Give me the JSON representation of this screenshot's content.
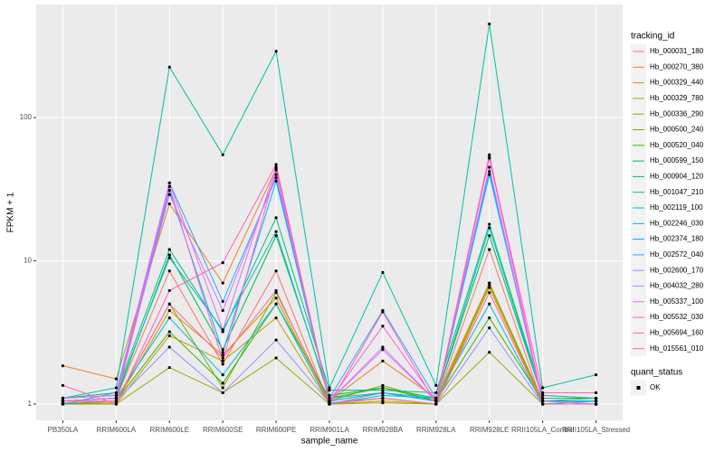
{
  "chart_data": {
    "type": "line",
    "x_label": "sample_name",
    "y_label": "FPKM + 1",
    "categories": [
      "PB350LA",
      "RRIM600LA",
      "RRIM600LE",
      "RRIM600SE",
      "RRIM600PE",
      "RRIM901LA",
      "RRIM928BA",
      "RRIM928LA",
      "RRIM928LE",
      "RRII105LA_Control",
      "RRII105LA_Stressed"
    ],
    "log_scale": true,
    "grid": true,
    "ylim": [
      0.77,
      615
    ],
    "yticks": [
      1,
      10,
      100
    ],
    "legend_title": "tracking_id",
    "legend_position": "right",
    "point_color": "#000000",
    "shape_legend": {
      "title": "quant_status",
      "labels": [
        "OK"
      ]
    },
    "series": [
      {
        "name": "Hb_000031_180",
        "color": "#F8766D",
        "values": [
          1.05,
          1.1,
          8.5,
          1.9,
          8.5,
          1.0,
          1.2,
          1.05,
          12,
          1.0,
          1.0
        ]
      },
      {
        "name": "Hb_000270_380",
        "color": "#EA8331",
        "values": [
          1.85,
          1.5,
          25,
          7,
          44,
          1.05,
          2.0,
          1.1,
          7,
          1.05,
          1.05
        ]
      },
      {
        "name": "Hb_000329_440",
        "color": "#D89000",
        "values": [
          1.0,
          1.02,
          4.5,
          2.2,
          5.5,
          1.02,
          1.1,
          1.0,
          6.5,
          1.0,
          1.0
        ]
      },
      {
        "name": "Hb_000329_780",
        "color": "#C09B00",
        "values": [
          1.0,
          1.0,
          3.0,
          2.0,
          4.0,
          1.0,
          1.05,
          1.0,
          7,
          1.0,
          1.0
        ]
      },
      {
        "name": "Hb_000336_290",
        "color": "#A3A500",
        "values": [
          1.0,
          1.0,
          1.8,
          1.2,
          2.1,
          1.0,
          1.02,
          1.0,
          2.3,
          1.0,
          1.0
        ]
      },
      {
        "name": "Hb_000500_240",
        "color": "#7CAE00",
        "values": [
          1.02,
          1.05,
          5.0,
          1.3,
          6.0,
          1.05,
          1.35,
          1.05,
          6.8,
          1.05,
          1.1
        ]
      },
      {
        "name": "Hb_000520_040",
        "color": "#39B600",
        "values": [
          1.0,
          1.05,
          3.2,
          1.4,
          5.0,
          1.1,
          1.3,
          1.05,
          4.0,
          1.05,
          1.05
        ]
      },
      {
        "name": "Hb_000599_150",
        "color": "#00BB4E",
        "values": [
          1.05,
          1.1,
          11,
          2.4,
          15,
          1.15,
          1.3,
          1.1,
          15,
          1.1,
          1.1
        ]
      },
      {
        "name": "Hb_000904_120",
        "color": "#00BF7D",
        "values": [
          1.1,
          1.2,
          12,
          3.2,
          20,
          1.25,
          1.25,
          1.2,
          18,
          1.15,
          1.1
        ]
      },
      {
        "name": "Hb_001047_210",
        "color": "#00C1A3",
        "values": [
          1.1,
          1.3,
          225,
          55,
          290,
          1.3,
          8.3,
          1.35,
          450,
          1.3,
          1.6
        ]
      },
      {
        "name": "Hb_002119_100",
        "color": "#00BFC4",
        "values": [
          1.1,
          1.15,
          10.5,
          3.3,
          16,
          1.1,
          1.2,
          1.1,
          17,
          1.1,
          1.1
        ]
      },
      {
        "name": "Hb_002246_030",
        "color": "#00BAE0",
        "values": [
          1.05,
          1.1,
          4,
          1.6,
          5,
          1.0,
          1.15,
          1.1,
          5,
          1.0,
          1.05
        ]
      },
      {
        "name": "Hb_002374_180",
        "color": "#00B0F6",
        "values": [
          1.05,
          1.1,
          31,
          2.3,
          36,
          1.05,
          1.2,
          1.05,
          40,
          1.05,
          1.05
        ]
      },
      {
        "name": "Hb_002572_040",
        "color": "#35A2FF",
        "values": [
          1.0,
          1.2,
          35,
          5.2,
          38,
          1.1,
          4.5,
          1.1,
          42,
          1.05,
          1.0
        ]
      },
      {
        "name": "Hb_002600_170",
        "color": "#9590FF",
        "values": [
          1.02,
          1.05,
          2.5,
          1.2,
          2.8,
          1.02,
          1.1,
          1.0,
          3.4,
          1.0,
          1.0
        ]
      },
      {
        "name": "Hb_004032_280",
        "color": "#C77CFF",
        "values": [
          1.05,
          1.1,
          29,
          4.5,
          40,
          1.05,
          2.5,
          1.05,
          45,
          1.0,
          1.0
        ]
      },
      {
        "name": "Hb_005337_100",
        "color": "#E76BF3",
        "values": [
          1.1,
          1.15,
          35,
          3.3,
          45,
          1.05,
          2.4,
          1.05,
          52,
          1.05,
          1.0
        ]
      },
      {
        "name": "Hb_005532_030",
        "color": "#FA62DB",
        "values": [
          1.05,
          1.1,
          33,
          2.0,
          43,
          1.05,
          3.5,
          1.05,
          55,
          1.0,
          1.0
        ]
      },
      {
        "name": "Hb_005694_160",
        "color": "#FF62BC",
        "values": [
          1.35,
          1.0,
          6.2,
          9.7,
          47,
          1.0,
          4.4,
          1.0,
          53,
          1.2,
          1.2
        ]
      },
      {
        "name": "Hb_015561_010",
        "color": "#FF6C91",
        "values": [
          1.05,
          1.05,
          5,
          2.1,
          6.2,
          1.0,
          1.1,
          1.0,
          6,
          1.0,
          1.0
        ]
      }
    ]
  }
}
